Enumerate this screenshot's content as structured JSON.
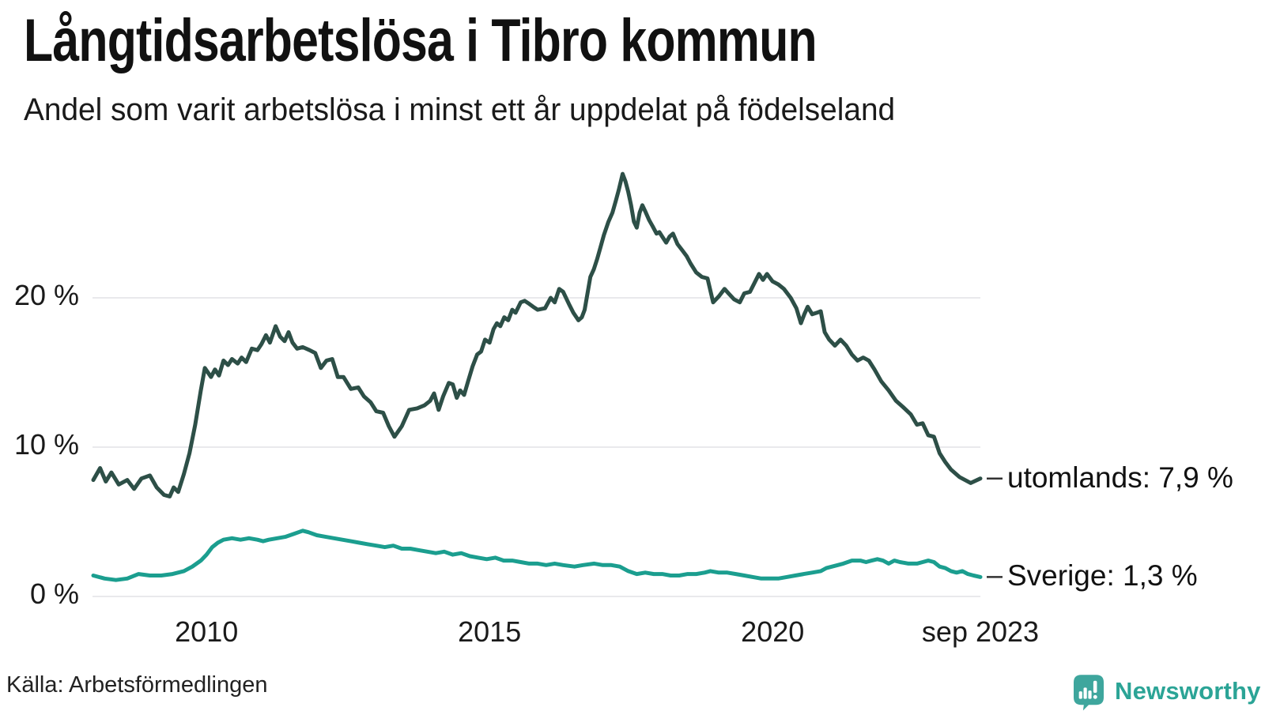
{
  "header": {
    "title": "Långtidsarbetslösa i Tibro kommun",
    "subtitle": "Andel som varit arbetslösa i minst ett år uppdelat på födelseland"
  },
  "footer": {
    "source": "Källa: Arbetsförmedlingen",
    "brand": "Newsworthy",
    "brand_icon": "newsworthy-speech-bubble-bar-chart-icon"
  },
  "colors": {
    "grid": "#e9e9ec",
    "text": "#161616",
    "leader": "#333333",
    "series_utomlands": "#2d4f47",
    "series_sverige": "#1b9e8f",
    "brand_teal": "#3ea69d",
    "brand_text_teal": "#2ba496"
  },
  "chart_data": {
    "type": "line",
    "title": "Långtidsarbetslösa i Tibro kommun",
    "subtitle": "Andel som varit arbetslösa i minst ett år uppdelat på födelseland",
    "x_domain": [
      2008.0,
      2023.67
    ],
    "ylim": [
      0,
      29
    ],
    "grid": true,
    "legend_position": "end-of-line-labels",
    "y_ticks": [
      {
        "value": 20,
        "label": "20 %"
      },
      {
        "value": 10,
        "label": "10 %"
      },
      {
        "value": 0,
        "label": "0 %"
      }
    ],
    "x_ticks": [
      {
        "value": 2010,
        "label": "2010"
      },
      {
        "value": 2015,
        "label": "2015"
      },
      {
        "value": 2020,
        "label": "2020"
      },
      {
        "value": 2023.67,
        "label": "sep 2023"
      }
    ],
    "series": [
      {
        "name": "utomlands",
        "end_label": "utomlands: 7,9 %",
        "end_value_text": "7,9 %",
        "color": "#2d4f47",
        "points": [
          [
            2008.0,
            7.8
          ],
          [
            2008.12,
            8.6
          ],
          [
            2008.22,
            7.7
          ],
          [
            2008.32,
            8.3
          ],
          [
            2008.45,
            7.5
          ],
          [
            2008.6,
            7.8
          ],
          [
            2008.72,
            7.2
          ],
          [
            2008.85,
            7.9
          ],
          [
            2009.0,
            8.1
          ],
          [
            2009.12,
            7.3
          ],
          [
            2009.25,
            6.8
          ],
          [
            2009.35,
            6.7
          ],
          [
            2009.42,
            7.3
          ],
          [
            2009.5,
            7.0
          ],
          [
            2009.6,
            8.2
          ],
          [
            2009.7,
            9.6
          ],
          [
            2009.8,
            11.5
          ],
          [
            2009.9,
            13.8
          ],
          [
            2009.97,
            15.3
          ],
          [
            2010.08,
            14.7
          ],
          [
            2010.15,
            15.2
          ],
          [
            2010.22,
            14.8
          ],
          [
            2010.3,
            15.8
          ],
          [
            2010.38,
            15.5
          ],
          [
            2010.45,
            15.9
          ],
          [
            2010.55,
            15.6
          ],
          [
            2010.62,
            16.0
          ],
          [
            2010.7,
            15.7
          ],
          [
            2010.8,
            16.6
          ],
          [
            2010.9,
            16.5
          ],
          [
            2010.97,
            16.9
          ],
          [
            2011.05,
            17.5
          ],
          [
            2011.12,
            17.0
          ],
          [
            2011.22,
            18.1
          ],
          [
            2011.3,
            17.4
          ],
          [
            2011.38,
            17.1
          ],
          [
            2011.45,
            17.7
          ],
          [
            2011.52,
            17.0
          ],
          [
            2011.6,
            16.6
          ],
          [
            2011.7,
            16.7
          ],
          [
            2011.82,
            16.5
          ],
          [
            2011.92,
            16.3
          ],
          [
            2012.02,
            15.3
          ],
          [
            2012.12,
            15.8
          ],
          [
            2012.22,
            15.9
          ],
          [
            2012.32,
            14.7
          ],
          [
            2012.42,
            14.7
          ],
          [
            2012.55,
            13.9
          ],
          [
            2012.68,
            14.0
          ],
          [
            2012.78,
            13.4
          ],
          [
            2012.9,
            13.0
          ],
          [
            2013.0,
            12.4
          ],
          [
            2013.12,
            12.3
          ],
          [
            2013.22,
            11.4
          ],
          [
            2013.32,
            10.7
          ],
          [
            2013.45,
            11.4
          ],
          [
            2013.58,
            12.5
          ],
          [
            2013.72,
            12.6
          ],
          [
            2013.85,
            12.8
          ],
          [
            2013.95,
            13.1
          ],
          [
            2014.02,
            13.6
          ],
          [
            2014.1,
            12.5
          ],
          [
            2014.18,
            13.4
          ],
          [
            2014.28,
            14.3
          ],
          [
            2014.35,
            14.2
          ],
          [
            2014.42,
            13.3
          ],
          [
            2014.48,
            13.8
          ],
          [
            2014.55,
            13.5
          ],
          [
            2014.62,
            14.4
          ],
          [
            2014.7,
            15.4
          ],
          [
            2014.78,
            16.2
          ],
          [
            2014.85,
            16.4
          ],
          [
            2014.92,
            17.2
          ],
          [
            2015.0,
            17.0
          ],
          [
            2015.07,
            17.9
          ],
          [
            2015.13,
            18.3
          ],
          [
            2015.19,
            18.1
          ],
          [
            2015.26,
            18.7
          ],
          [
            2015.33,
            18.5
          ],
          [
            2015.4,
            19.2
          ],
          [
            2015.46,
            19.0
          ],
          [
            2015.55,
            19.7
          ],
          [
            2015.62,
            19.8
          ],
          [
            2015.7,
            19.6
          ],
          [
            2015.77,
            19.4
          ],
          [
            2015.85,
            19.2
          ],
          [
            2015.98,
            19.3
          ],
          [
            2016.08,
            20.0
          ],
          [
            2016.15,
            19.7
          ],
          [
            2016.23,
            20.6
          ],
          [
            2016.3,
            20.4
          ],
          [
            2016.4,
            19.6
          ],
          [
            2016.48,
            19.0
          ],
          [
            2016.57,
            18.5
          ],
          [
            2016.63,
            18.7
          ],
          [
            2016.68,
            19.2
          ],
          [
            2016.73,
            20.3
          ],
          [
            2016.78,
            21.4
          ],
          [
            2016.84,
            21.9
          ],
          [
            2016.9,
            22.6
          ],
          [
            2016.96,
            23.4
          ],
          [
            2017.02,
            24.2
          ],
          [
            2017.1,
            25.1
          ],
          [
            2017.17,
            25.7
          ],
          [
            2017.23,
            26.5
          ],
          [
            2017.28,
            27.2
          ],
          [
            2017.35,
            28.3
          ],
          [
            2017.4,
            27.8
          ],
          [
            2017.45,
            27.1
          ],
          [
            2017.5,
            26.2
          ],
          [
            2017.55,
            25.1
          ],
          [
            2017.6,
            24.7
          ],
          [
            2017.65,
            25.7
          ],
          [
            2017.7,
            26.2
          ],
          [
            2017.75,
            25.8
          ],
          [
            2017.82,
            25.2
          ],
          [
            2017.88,
            24.8
          ],
          [
            2017.95,
            24.3
          ],
          [
            2018.0,
            24.4
          ],
          [
            2018.05,
            24.1
          ],
          [
            2018.12,
            23.7
          ],
          [
            2018.18,
            24.1
          ],
          [
            2018.24,
            24.3
          ],
          [
            2018.32,
            23.6
          ],
          [
            2018.4,
            23.2
          ],
          [
            2018.48,
            22.8
          ],
          [
            2018.55,
            22.3
          ],
          [
            2018.65,
            21.7
          ],
          [
            2018.75,
            21.4
          ],
          [
            2018.85,
            21.3
          ],
          [
            2018.95,
            19.7
          ],
          [
            2019.05,
            20.1
          ],
          [
            2019.15,
            20.6
          ],
          [
            2019.22,
            20.3
          ],
          [
            2019.32,
            19.9
          ],
          [
            2019.42,
            19.7
          ],
          [
            2019.5,
            20.3
          ],
          [
            2019.6,
            20.4
          ],
          [
            2019.68,
            21.0
          ],
          [
            2019.76,
            21.6
          ],
          [
            2019.83,
            21.2
          ],
          [
            2019.9,
            21.6
          ],
          [
            2020.0,
            21.1
          ],
          [
            2020.1,
            20.9
          ],
          [
            2020.2,
            20.6
          ],
          [
            2020.32,
            20.0
          ],
          [
            2020.42,
            19.3
          ],
          [
            2020.5,
            18.3
          ],
          [
            2020.56,
            18.9
          ],
          [
            2020.62,
            19.4
          ],
          [
            2020.7,
            18.9
          ],
          [
            2020.78,
            19.0
          ],
          [
            2020.85,
            19.1
          ],
          [
            2020.92,
            17.7
          ],
          [
            2021.0,
            17.2
          ],
          [
            2021.1,
            16.8
          ],
          [
            2021.2,
            17.2
          ],
          [
            2021.3,
            16.8
          ],
          [
            2021.4,
            16.2
          ],
          [
            2021.5,
            15.8
          ],
          [
            2021.6,
            16.0
          ],
          [
            2021.7,
            15.8
          ],
          [
            2021.8,
            15.2
          ],
          [
            2021.92,
            14.4
          ],
          [
            2022.05,
            13.8
          ],
          [
            2022.18,
            13.1
          ],
          [
            2022.3,
            12.7
          ],
          [
            2022.44,
            12.2
          ],
          [
            2022.55,
            11.5
          ],
          [
            2022.65,
            11.6
          ],
          [
            2022.75,
            10.8
          ],
          [
            2022.85,
            10.7
          ],
          [
            2022.95,
            9.6
          ],
          [
            2023.05,
            9.0
          ],
          [
            2023.15,
            8.5
          ],
          [
            2023.3,
            8.0
          ],
          [
            2023.5,
            7.6
          ],
          [
            2023.67,
            7.9
          ]
        ]
      },
      {
        "name": "Sverige",
        "end_label": "Sverige: 1,3 %",
        "end_value_text": "1,3 %",
        "color": "#1b9e8f",
        "points": [
          [
            2008.0,
            1.4
          ],
          [
            2008.2,
            1.2
          ],
          [
            2008.4,
            1.1
          ],
          [
            2008.6,
            1.2
          ],
          [
            2008.8,
            1.5
          ],
          [
            2009.0,
            1.4
          ],
          [
            2009.2,
            1.4
          ],
          [
            2009.4,
            1.5
          ],
          [
            2009.6,
            1.7
          ],
          [
            2009.75,
            2.0
          ],
          [
            2009.9,
            2.4
          ],
          [
            2010.0,
            2.8
          ],
          [
            2010.1,
            3.3
          ],
          [
            2010.2,
            3.6
          ],
          [
            2010.3,
            3.8
          ],
          [
            2010.45,
            3.9
          ],
          [
            2010.6,
            3.8
          ],
          [
            2010.75,
            3.9
          ],
          [
            2010.9,
            3.8
          ],
          [
            2011.0,
            3.7
          ],
          [
            2011.1,
            3.8
          ],
          [
            2011.25,
            3.9
          ],
          [
            2011.4,
            4.0
          ],
          [
            2011.55,
            4.2
          ],
          [
            2011.7,
            4.4
          ],
          [
            2011.8,
            4.3
          ],
          [
            2011.95,
            4.1
          ],
          [
            2012.1,
            4.0
          ],
          [
            2012.25,
            3.9
          ],
          [
            2012.4,
            3.8
          ],
          [
            2012.55,
            3.7
          ],
          [
            2012.7,
            3.6
          ],
          [
            2012.85,
            3.5
          ],
          [
            2013.0,
            3.4
          ],
          [
            2013.15,
            3.3
          ],
          [
            2013.3,
            3.4
          ],
          [
            2013.45,
            3.2
          ],
          [
            2013.6,
            3.2
          ],
          [
            2013.75,
            3.1
          ],
          [
            2013.9,
            3.0
          ],
          [
            2014.05,
            2.9
          ],
          [
            2014.2,
            3.0
          ],
          [
            2014.35,
            2.8
          ],
          [
            2014.5,
            2.9
          ],
          [
            2014.65,
            2.7
          ],
          [
            2014.8,
            2.6
          ],
          [
            2014.95,
            2.5
          ],
          [
            2015.1,
            2.6
          ],
          [
            2015.25,
            2.4
          ],
          [
            2015.4,
            2.4
          ],
          [
            2015.55,
            2.3
          ],
          [
            2015.7,
            2.2
          ],
          [
            2015.85,
            2.2
          ],
          [
            2016.0,
            2.1
          ],
          [
            2016.15,
            2.2
          ],
          [
            2016.3,
            2.1
          ],
          [
            2016.5,
            2.0
          ],
          [
            2016.65,
            2.1
          ],
          [
            2016.85,
            2.2
          ],
          [
            2017.0,
            2.1
          ],
          [
            2017.15,
            2.1
          ],
          [
            2017.3,
            2.0
          ],
          [
            2017.45,
            1.7
          ],
          [
            2017.6,
            1.5
          ],
          [
            2017.75,
            1.6
          ],
          [
            2017.9,
            1.5
          ],
          [
            2018.05,
            1.5
          ],
          [
            2018.2,
            1.4
          ],
          [
            2018.35,
            1.4
          ],
          [
            2018.5,
            1.5
          ],
          [
            2018.65,
            1.5
          ],
          [
            2018.8,
            1.6
          ],
          [
            2018.9,
            1.7
          ],
          [
            2019.05,
            1.6
          ],
          [
            2019.2,
            1.6
          ],
          [
            2019.35,
            1.5
          ],
          [
            2019.5,
            1.4
          ],
          [
            2019.65,
            1.3
          ],
          [
            2019.8,
            1.2
          ],
          [
            2019.95,
            1.2
          ],
          [
            2020.1,
            1.2
          ],
          [
            2020.25,
            1.3
          ],
          [
            2020.4,
            1.4
          ],
          [
            2020.55,
            1.5
          ],
          [
            2020.7,
            1.6
          ],
          [
            2020.85,
            1.7
          ],
          [
            2020.95,
            1.9
          ],
          [
            2021.05,
            2.0
          ],
          [
            2021.15,
            2.1
          ],
          [
            2021.25,
            2.2
          ],
          [
            2021.4,
            2.4
          ],
          [
            2021.55,
            2.4
          ],
          [
            2021.65,
            2.3
          ],
          [
            2021.75,
            2.4
          ],
          [
            2021.85,
            2.5
          ],
          [
            2021.95,
            2.4
          ],
          [
            2022.05,
            2.2
          ],
          [
            2022.15,
            2.4
          ],
          [
            2022.25,
            2.3
          ],
          [
            2022.4,
            2.2
          ],
          [
            2022.55,
            2.2
          ],
          [
            2022.65,
            2.3
          ],
          [
            2022.75,
            2.4
          ],
          [
            2022.85,
            2.3
          ],
          [
            2022.95,
            2.0
          ],
          [
            2023.05,
            1.9
          ],
          [
            2023.15,
            1.7
          ],
          [
            2023.25,
            1.6
          ],
          [
            2023.35,
            1.7
          ],
          [
            2023.45,
            1.5
          ],
          [
            2023.55,
            1.4
          ],
          [
            2023.67,
            1.3
          ]
        ]
      }
    ]
  }
}
